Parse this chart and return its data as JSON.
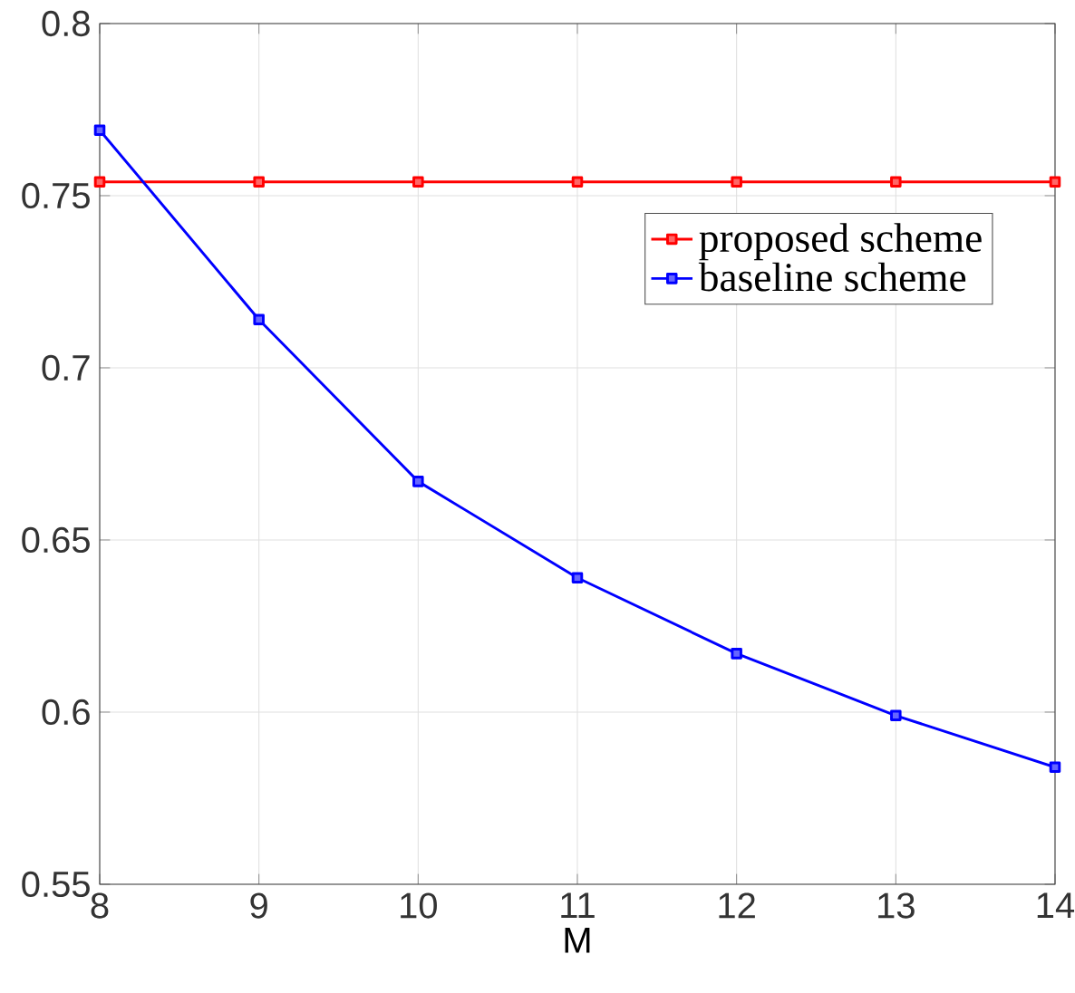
{
  "chart_data": {
    "type": "line",
    "xlabel": "M",
    "x": [
      8,
      9,
      10,
      11,
      12,
      13,
      14
    ],
    "series": [
      {
        "name": "proposed scheme",
        "color": "#ff0000",
        "values": [
          0.754,
          0.754,
          0.754,
          0.754,
          0.754,
          0.754,
          0.754
        ]
      },
      {
        "name": "baseline scheme",
        "color": "#0000ff",
        "values": [
          0.769,
          0.714,
          0.667,
          0.639,
          0.617,
          0.599,
          0.584
        ]
      }
    ],
    "xlim": [
      8,
      14
    ],
    "xticks": [
      8,
      9,
      10,
      11,
      12,
      13,
      14
    ],
    "ylim": [
      0.55,
      0.8
    ],
    "yticks": [
      0.55,
      0.6,
      0.65,
      0.7,
      0.75,
      0.8
    ],
    "grid": true,
    "legend": "top right",
    "marker": "square",
    "line_style": "solid"
  }
}
